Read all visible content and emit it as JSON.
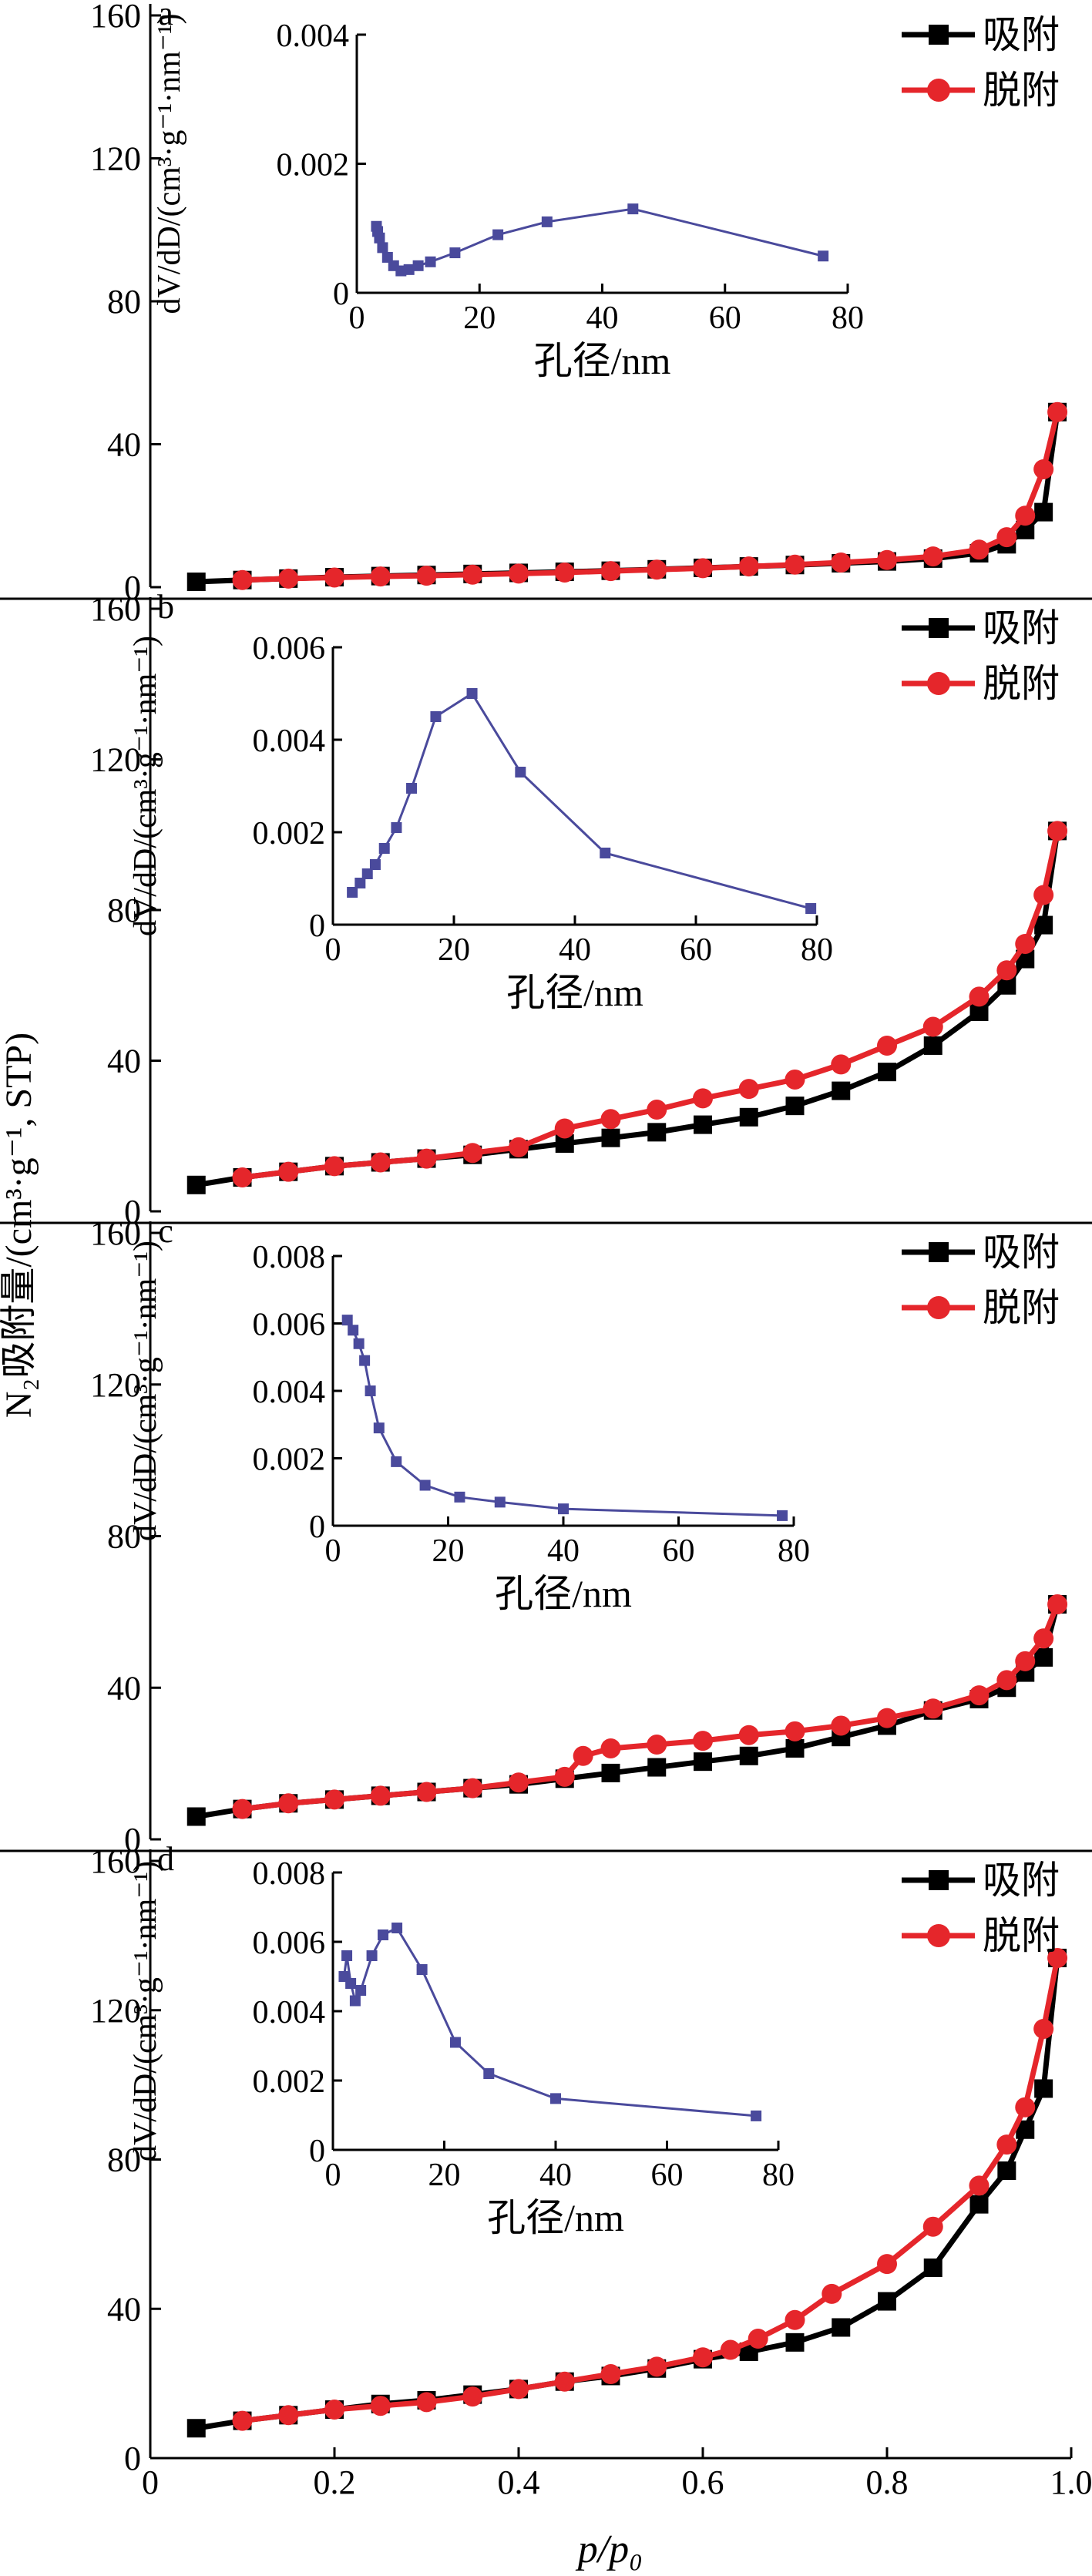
{
  "figure": {
    "y_label": "N₂吸附量/(cm³·g⁻¹, STP)",
    "x_label": "p/p₀"
  },
  "legend": {
    "adsorption": "吸附",
    "desorption": "脱附"
  },
  "colors": {
    "adsorption": "#000000",
    "desorption": "#e5262b",
    "inset": "#4a4a9c"
  },
  "chart_data": [
    {
      "panel": "a",
      "type": "line",
      "xlabel": "p/p₀",
      "ylabel": "N₂吸附量/(cm³·g⁻¹, STP)",
      "xlim": [
        0,
        1.0
      ],
      "ylim": [
        0,
        160
      ],
      "xticks": [
        0,
        0.2,
        0.4,
        0.6,
        0.8,
        1.0
      ],
      "yticks": [
        0,
        40,
        80,
        120,
        160
      ],
      "series": [
        {
          "name": "吸附",
          "x": [
            0.05,
            0.1,
            0.15,
            0.2,
            0.25,
            0.3,
            0.35,
            0.4,
            0.45,
            0.5,
            0.55,
            0.6,
            0.65,
            0.7,
            0.75,
            0.8,
            0.85,
            0.9,
            0.93,
            0.95,
            0.97,
            0.985
          ],
          "y": [
            1.5,
            2.0,
            2.4,
            2.8,
            3.1,
            3.4,
            3.7,
            4.0,
            4.3,
            4.6,
            5.0,
            5.4,
            5.8,
            6.2,
            6.7,
            7.2,
            8.0,
            9.5,
            12,
            16,
            21,
            49
          ]
        },
        {
          "name": "脱附",
          "x": [
            0.1,
            0.15,
            0.2,
            0.25,
            0.3,
            0.35,
            0.4,
            0.45,
            0.5,
            0.55,
            0.6,
            0.65,
            0.7,
            0.75,
            0.8,
            0.85,
            0.9,
            0.93,
            0.95,
            0.97,
            0.985
          ],
          "y": [
            2.0,
            2.4,
            2.7,
            3.0,
            3.2,
            3.5,
            3.8,
            4.1,
            4.5,
            4.9,
            5.3,
            5.8,
            6.3,
            6.9,
            7.6,
            8.6,
            10.5,
            14,
            20,
            33,
            49
          ]
        }
      ],
      "inset": {
        "type": "line",
        "xlabel": "孔径/nm",
        "ylabel": "dV/dD/(cm³·g⁻¹·nm⁻¹)",
        "xlim": [
          0,
          80
        ],
        "ylim": [
          0,
          0.004
        ],
        "xticks": [
          0,
          20,
          40,
          60,
          80
        ],
        "yticks": [
          0,
          0.002,
          0.004
        ],
        "ytick_labels": [
          "0",
          "0.002",
          "0.004"
        ],
        "x": [
          3.2,
          3.4,
          3.7,
          4.2,
          5.0,
          6.0,
          7.2,
          8.5,
          10,
          12,
          16,
          23,
          31,
          45,
          76
        ],
        "y": [
          0.00103,
          0.00095,
          0.00085,
          0.0007,
          0.00055,
          0.00042,
          0.00034,
          0.00036,
          0.00042,
          0.00048,
          0.00062,
          0.0009,
          0.0011,
          0.0013,
          0.00057
        ]
      }
    },
    {
      "panel": "b",
      "type": "line",
      "xlabel": "p/p₀",
      "ylabel": "N₂吸附量/(cm³·g⁻¹, STP)",
      "xlim": [
        0,
        1.0
      ],
      "ylim": [
        0,
        160
      ],
      "xticks": [
        0,
        0.2,
        0.4,
        0.6,
        0.8,
        1.0
      ],
      "yticks": [
        0,
        40,
        80,
        120,
        160
      ],
      "series": [
        {
          "name": "吸附",
          "x": [
            0.05,
            0.1,
            0.15,
            0.2,
            0.25,
            0.3,
            0.35,
            0.4,
            0.45,
            0.5,
            0.55,
            0.6,
            0.65,
            0.7,
            0.75,
            0.8,
            0.85,
            0.9,
            0.93,
            0.95,
            0.97,
            0.985
          ],
          "y": [
            7,
            9,
            10.5,
            12,
            13,
            14,
            15,
            16.5,
            18,
            19.5,
            21,
            23,
            25,
            28,
            32,
            37,
            44,
            53,
            60,
            67,
            76,
            101
          ]
        },
        {
          "name": "脱附",
          "x": [
            0.1,
            0.15,
            0.2,
            0.25,
            0.3,
            0.35,
            0.4,
            0.45,
            0.5,
            0.55,
            0.6,
            0.65,
            0.7,
            0.75,
            0.8,
            0.85,
            0.9,
            0.93,
            0.95,
            0.97,
            0.985
          ],
          "y": [
            9,
            10.5,
            12,
            13,
            14,
            15.5,
            17,
            22,
            24.5,
            27,
            30,
            32.5,
            35,
            39,
            44,
            49,
            57,
            64,
            71,
            84,
            101
          ]
        }
      ],
      "inset": {
        "type": "line",
        "xlabel": "孔径/nm",
        "ylabel": "dV/dD/(cm³·g⁻¹·nm⁻¹)",
        "xlim": [
          0,
          80
        ],
        "ylim": [
          0,
          0.006
        ],
        "xticks": [
          0,
          20,
          40,
          60,
          80
        ],
        "yticks": [
          0,
          0.002,
          0.004,
          0.006
        ],
        "ytick_labels": [
          "0",
          "0.002",
          "0.004",
          "0.006"
        ],
        "x": [
          3.2,
          4.5,
          5.7,
          7,
          8.5,
          10.5,
          13,
          17,
          23,
          31,
          45,
          79
        ],
        "y": [
          0.0007,
          0.0009,
          0.0011,
          0.0013,
          0.00165,
          0.0021,
          0.00295,
          0.0045,
          0.005,
          0.0033,
          0.00155,
          0.00035
        ]
      }
    },
    {
      "panel": "c",
      "type": "line",
      "xlabel": "p/p₀",
      "ylabel": "N₂吸附量/(cm³·g⁻¹, STP)",
      "xlim": [
        0,
        1.0
      ],
      "ylim": [
        0,
        160
      ],
      "xticks": [
        0,
        0.2,
        0.4,
        0.6,
        0.8,
        1.0
      ],
      "yticks": [
        0,
        40,
        80,
        120,
        160
      ],
      "series": [
        {
          "name": "吸附",
          "x": [
            0.05,
            0.1,
            0.15,
            0.2,
            0.25,
            0.3,
            0.35,
            0.4,
            0.45,
            0.5,
            0.55,
            0.6,
            0.65,
            0.7,
            0.75,
            0.8,
            0.85,
            0.9,
            0.93,
            0.95,
            0.97,
            0.985
          ],
          "y": [
            6,
            8,
            9.5,
            10.5,
            11.5,
            12.5,
            13.5,
            14.5,
            16,
            17.5,
            19,
            20.5,
            22,
            24,
            27,
            30,
            34,
            37,
            40,
            44,
            48,
            62
          ]
        },
        {
          "name": "脱附",
          "x": [
            0.1,
            0.15,
            0.2,
            0.25,
            0.3,
            0.35,
            0.4,
            0.45,
            0.47,
            0.5,
            0.55,
            0.6,
            0.65,
            0.7,
            0.75,
            0.8,
            0.85,
            0.9,
            0.93,
            0.95,
            0.97,
            0.985
          ],
          "y": [
            8,
            9.5,
            10.5,
            11.5,
            12.5,
            13.5,
            15,
            16.5,
            22,
            24,
            25,
            26,
            27.5,
            28.5,
            30,
            32,
            34.5,
            38,
            42,
            47,
            53,
            62
          ]
        }
      ],
      "inset": {
        "type": "line",
        "xlabel": "孔径/nm",
        "ylabel": "dV/dD/(cm³·g⁻¹·nm⁻¹)",
        "xlim": [
          0,
          80
        ],
        "ylim": [
          0,
          0.008
        ],
        "xticks": [
          0,
          20,
          40,
          60,
          80
        ],
        "yticks": [
          0,
          0.002,
          0.004,
          0.006,
          0.008
        ],
        "ytick_labels": [
          "0",
          "0.002",
          "0.004",
          "0.006",
          "0.008"
        ],
        "x": [
          2.5,
          3.5,
          4.5,
          5.5,
          6.5,
          8,
          11,
          16,
          22,
          29,
          40,
          78
        ],
        "y": [
          0.0061,
          0.0058,
          0.0054,
          0.0049,
          0.004,
          0.0029,
          0.0019,
          0.0012,
          0.00085,
          0.0007,
          0.0005,
          0.0003
        ]
      }
    },
    {
      "panel": "d",
      "type": "line",
      "xlabel": "p/p₀",
      "ylabel": "N₂吸附量/(cm³·g⁻¹, STP)",
      "xlim": [
        0,
        1.0
      ],
      "ylim": [
        0,
        160
      ],
      "xticks": [
        0,
        0.2,
        0.4,
        0.6,
        0.8,
        1.0
      ],
      "yticks": [
        0,
        40,
        80,
        120,
        160
      ],
      "series": [
        {
          "name": "吸附",
          "x": [
            0.05,
            0.1,
            0.15,
            0.2,
            0.25,
            0.3,
            0.35,
            0.4,
            0.45,
            0.5,
            0.55,
            0.6,
            0.65,
            0.7,
            0.75,
            0.8,
            0.85,
            0.9,
            0.93,
            0.95,
            0.97,
            0.985
          ],
          "y": [
            8,
            10,
            11.5,
            13,
            14.5,
            15.5,
            17,
            18.5,
            20.5,
            22,
            24,
            26.5,
            28.5,
            31,
            35,
            42,
            51,
            68,
            77,
            88,
            99,
            134
          ]
        },
        {
          "name": "脱附",
          "x": [
            0.1,
            0.15,
            0.2,
            0.25,
            0.3,
            0.35,
            0.4,
            0.45,
            0.5,
            0.55,
            0.6,
            0.63,
            0.66,
            0.7,
            0.74,
            0.8,
            0.85,
            0.9,
            0.93,
            0.95,
            0.97,
            0.985
          ],
          "y": [
            10,
            11.5,
            13,
            14,
            15,
            16.5,
            18.5,
            20.5,
            22.5,
            24.5,
            27,
            29,
            32,
            37,
            44,
            52,
            62,
            73,
            84,
            94,
            115,
            134
          ]
        }
      ],
      "inset": {
        "type": "line",
        "xlabel": "孔径/nm",
        "ylabel": "dV/dD/(cm³·g⁻¹·nm⁻¹)",
        "xlim": [
          0,
          80
        ],
        "ylim": [
          0,
          0.008
        ],
        "xticks": [
          0,
          20,
          40,
          60,
          80
        ],
        "yticks": [
          0,
          0.002,
          0.004,
          0.006,
          0.008
        ],
        "ytick_labels": [
          "0",
          "0.002",
          "0.004",
          "0.006",
          "0.008"
        ],
        "x": [
          2,
          2.5,
          3.2,
          4,
          5,
          7,
          9,
          11.5,
          16,
          22,
          28,
          40,
          76
        ],
        "y": [
          0.005,
          0.0056,
          0.0048,
          0.0043,
          0.0046,
          0.0056,
          0.0062,
          0.0064,
          0.0052,
          0.0031,
          0.0022,
          0.00148,
          0.00098
        ]
      }
    }
  ]
}
